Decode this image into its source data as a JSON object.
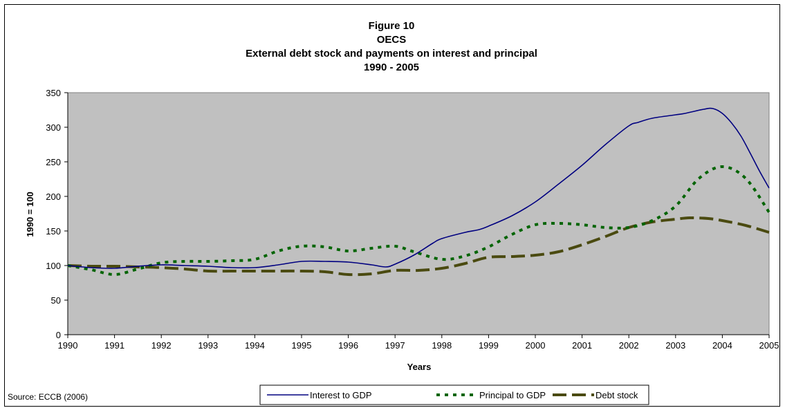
{
  "chart_data": {
    "type": "line",
    "title": [
      "Figure 10",
      "OECS",
      "External debt stock and payments on interest and principal",
      "1990 - 2005"
    ],
    "xlabel": "Years",
    "ylabel": "1990 = 100",
    "xlim": [
      1990,
      2005
    ],
    "ylim": [
      0,
      350
    ],
    "yticks": [
      0,
      50,
      100,
      150,
      200,
      250,
      300,
      350
    ],
    "xticks": [
      1990,
      1991,
      1992,
      1993,
      1994,
      1995,
      1996,
      1997,
      1998,
      1999,
      2000,
      2001,
      2002,
      2003,
      2004,
      2005
    ],
    "grid": false,
    "plot_background": "#c0c0c0",
    "legend_position": "bottom",
    "series": [
      {
        "name": "Interest to GDP",
        "color": "#000080",
        "style": "solid",
        "x": [
          1990,
          1990.5,
          1991,
          1991.5,
          1992,
          1992.5,
          1993,
          1993.5,
          1994,
          1994.5,
          1995,
          1995.5,
          1996,
          1996.5,
          1996.8,
          1997,
          1997.4,
          1997.8,
          1998,
          1998.5,
          1998.8,
          1999,
          1999.5,
          2000,
          2000.5,
          2001,
          2001.5,
          2002,
          2002.2,
          2002.5,
          2003,
          2003.2,
          2003.6,
          2003.8,
          2004,
          2004.2,
          2004.4,
          2004.6,
          2004.8,
          2005
        ],
        "y": [
          100,
          97,
          96,
          99,
          101,
          100,
          99,
          97,
          97,
          101,
          106,
          106,
          105,
          101,
          98,
          102,
          115,
          132,
          139,
          148,
          152,
          157,
          172,
          192,
          218,
          245,
          275,
          302,
          307,
          313,
          318,
          320,
          326,
          327,
          320,
          306,
          287,
          262,
          236,
          212
        ]
      },
      {
        "name": "Principal to GDP",
        "color": "#006400",
        "style": "dotted",
        "x": [
          1990,
          1990.5,
          1991,
          1991.5,
          1992,
          1992.5,
          1993,
          1993.5,
          1994,
          1994.5,
          1995,
          1995.5,
          1996,
          1996.5,
          1997,
          1997.4,
          1998,
          1998.5,
          1999,
          1999.5,
          2000,
          2000.5,
          2001,
          2001.5,
          2002,
          2002.5,
          2003,
          2003.5,
          2004,
          2004.5,
          2005
        ],
        "y": [
          100,
          94,
          87,
          95,
          104,
          106,
          106,
          107,
          109,
          121,
          128,
          127,
          121,
          125,
          128,
          120,
          109,
          114,
          127,
          145,
          159,
          161,
          159,
          155,
          155,
          165,
          186,
          226,
          243,
          226,
          177
        ]
      },
      {
        "name": "Debt stock",
        "color": "#4a4a10",
        "style": "dashed",
        "x": [
          1990,
          1990.5,
          1991,
          1991.5,
          1992,
          1992.5,
          1993,
          1993.5,
          1994,
          1994.5,
          1995,
          1995.5,
          1996,
          1996.5,
          1997,
          1997.5,
          1998,
          1998.5,
          1999,
          1999.5,
          2000,
          2000.5,
          2001,
          2001.5,
          2002,
          2002.5,
          2003,
          2003.3,
          2003.7,
          2004,
          2004.5,
          2005
        ],
        "y": [
          100,
          99,
          99,
          98,
          97,
          95,
          92,
          92,
          92,
          92,
          92,
          91,
          87,
          88,
          93,
          93,
          96,
          103,
          112,
          113,
          115,
          120,
          130,
          142,
          155,
          163,
          167,
          169,
          168,
          165,
          158,
          148
        ]
      }
    ]
  },
  "source": "Source: ECCB (2006)"
}
